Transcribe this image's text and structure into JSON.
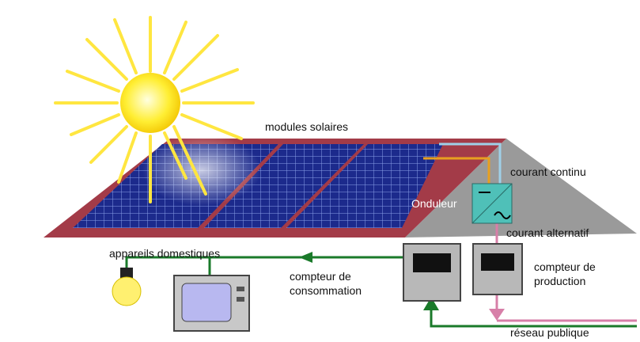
{
  "labels": {
    "solar_modules": "modules solaires",
    "direct_current": "courant continu",
    "inverter": "Onduleur",
    "alternating_current": "courant alternatif",
    "appliances": "appareils domestiques",
    "consumption_meter": [
      "compteur de",
      "consommation"
    ],
    "production_meter": [
      "compteur de",
      "production"
    ],
    "public_grid": "réseau publique"
  }
}
